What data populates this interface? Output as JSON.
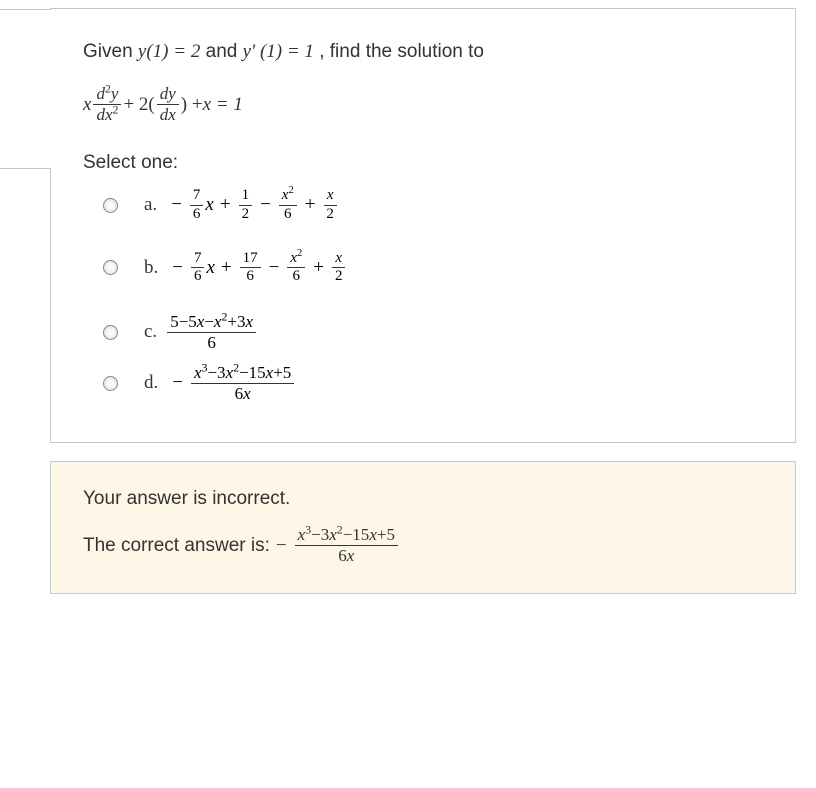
{
  "question": {
    "prefix": "Given ",
    "cond1_lhs": "y(1) = 2",
    "and": " and ",
    "cond2_lhs": "y′ (1) = 1",
    "suffix": ", find the solution to",
    "eq_parts": {
      "x": "x",
      "d2y": "d",
      "sq": "2",
      "y": "y",
      "dx2_d": "dx",
      "plus2": " + 2(",
      "dy": "dy",
      "dx": "dx",
      "close": ") + ",
      "xeq": "x = 1"
    }
  },
  "select_label": "Select one:",
  "options": {
    "a": {
      "label": "a.",
      "terms": {
        "t1n": "7",
        "t1d": "6",
        "t1v": "x",
        "t2n": "1",
        "t2d": "2",
        "t3n": "x",
        "t3d": "6",
        "t4n": "x",
        "t4d": "2"
      }
    },
    "b": {
      "label": "b.",
      "terms": {
        "t1n": "7",
        "t1d": "6",
        "t1v": "x",
        "t2n": "17",
        "t2d": "6",
        "t3n": "x",
        "t3d": "6",
        "t4n": "x",
        "t4d": "2"
      }
    },
    "c": {
      "label": "c.",
      "num": "5−5x−x²+3x",
      "den": "6"
    },
    "d": {
      "label": "d.",
      "num": "x³−3x²−15x+5",
      "den": "6x"
    }
  },
  "feedback": {
    "incorrect": "Your answer is incorrect.",
    "correct_prefix": "The correct answer is: ",
    "answer_num": "x³−3x²−15x+5",
    "answer_den": "6x"
  },
  "ops": {
    "minus": "−",
    "plus": "+"
  },
  "colors": {
    "border": "#c0c8d0",
    "bg": "#ffffff",
    "feedback_bg": "#fef7e8",
    "text": "#333333"
  },
  "typography": {
    "body_fontsize": 19,
    "fraction_fontsize": 15,
    "font_family_ui": "-apple-system, Segoe UI, Arial, sans-serif",
    "font_family_math": "Times New Roman, serif"
  }
}
